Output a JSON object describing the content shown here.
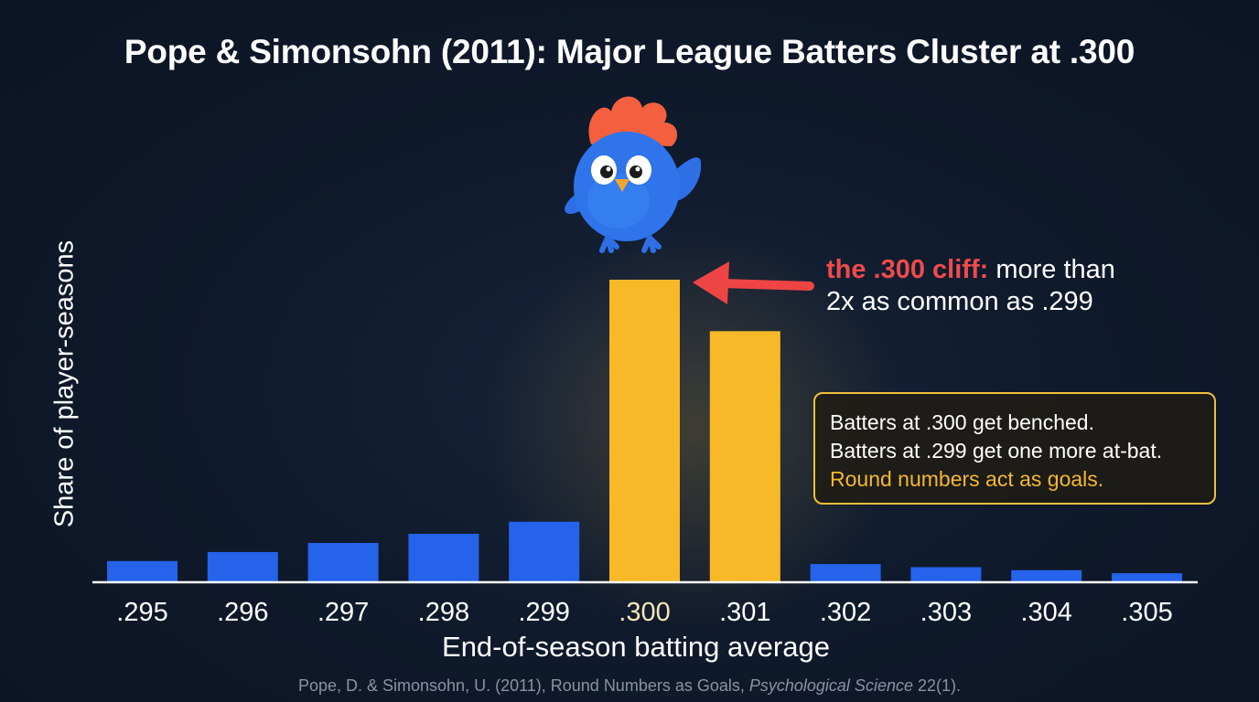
{
  "title": "Pope & Simonsohn (2011): Major League Batters Cluster at .300",
  "annotation": {
    "highlight": "the .300 cliff:",
    "line1_rest": " more than",
    "line2": "2x as common as .299"
  },
  "note_box": {
    "line1": "Batters at .300 get benched.",
    "line2": "Batters at .299 get one more at-bat.",
    "line3": "Round numbers act as goals."
  },
  "citation": {
    "prefix": "Pope, D. & Simonsohn, U. (2011), Round Numbers as Goals, ",
    "journal": "Psychological Science",
    "suffix": " 22(1)."
  },
  "colors": {
    "bar_default": "#2563eb",
    "bar_highlight": "#f7b928",
    "arrow": "#ef4444",
    "axis": "#ffffff",
    "highlight_tick": "#f5e6b8"
  },
  "mascot_icon": "blue-bird-mascot-icon",
  "chart_data": {
    "type": "bar",
    "xlabel": "End-of-season batting average",
    "ylabel": "Share of player-seasons",
    "categories": [
      ".295",
      ".296",
      ".297",
      ".298",
      ".299",
      ".300",
      ".301",
      ".302",
      ".303",
      ".304",
      ".305"
    ],
    "values": [
      7,
      10,
      13,
      16,
      20,
      100,
      83,
      6,
      5,
      4,
      3
    ],
    "highlighted": [
      ".300",
      ".301"
    ],
    "ylim": [
      0,
      100
    ],
    "grid": false,
    "legend": "none",
    "y_ticks_shown": false
  }
}
